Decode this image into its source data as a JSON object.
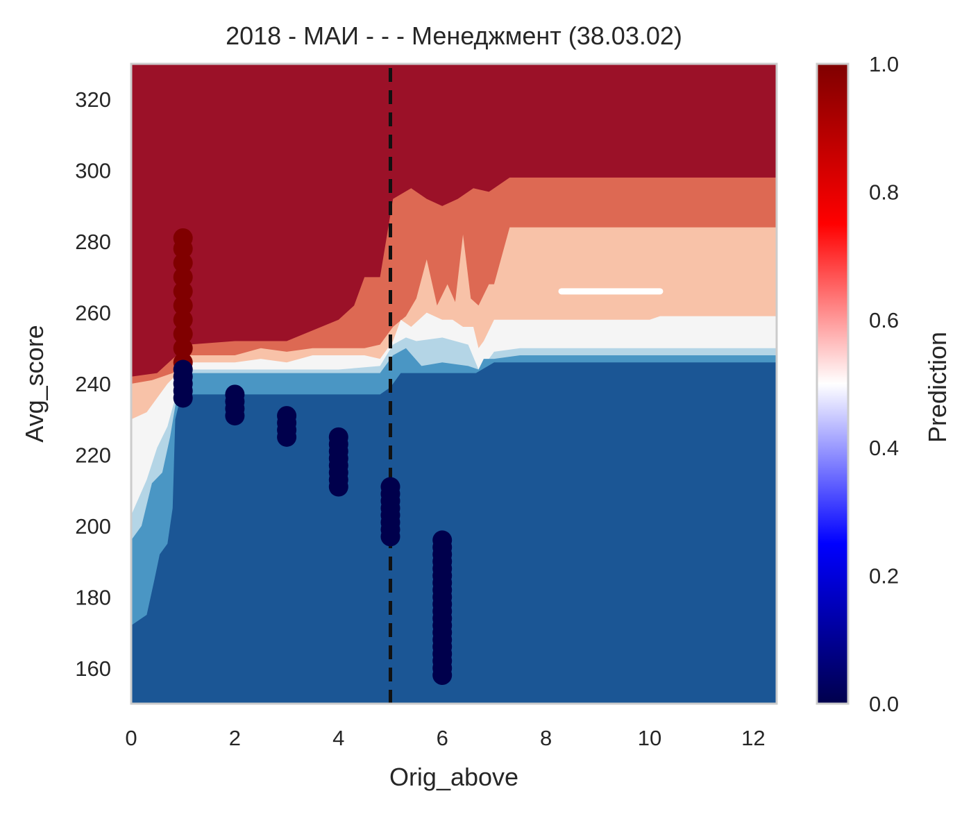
{
  "chart_data": {
    "type": "heatmap",
    "title": "2018 - МАИ - - - Менеджмент (38.03.02)",
    "xlabel": "Orig_above",
    "ylabel": "Avg_score",
    "xlim": [
      0,
      12.45
    ],
    "ylim": [
      150,
      330
    ],
    "xticks": [
      0,
      2,
      4,
      6,
      8,
      10,
      12
    ],
    "yticks": [
      160,
      180,
      200,
      220,
      240,
      260,
      280,
      300,
      320
    ],
    "threshold_x": 5,
    "grid": false,
    "colorbar": {
      "label": "Prediction",
      "range": [
        0,
        1
      ],
      "ticks": [
        "0.0",
        "0.2",
        "0.4",
        "0.6",
        "0.8",
        "1.0"
      ],
      "colormap": "seismic"
    },
    "contour_levels": [
      {
        "level": "0.0-0.15",
        "color": "#1b5695"
      },
      {
        "level": "0.15-0.3",
        "color": "#4a96c4"
      },
      {
        "level": "0.3-0.45",
        "color": "#b4d5e6"
      },
      {
        "level": "0.45-0.55",
        "color": "#f5f5f5"
      },
      {
        "level": "0.55-0.7",
        "color": "#f8c2a8"
      },
      {
        "level": "0.7-0.85",
        "color": "#dd6953"
      },
      {
        "level": "0.85-1.0",
        "color": "#9b1128"
      }
    ],
    "boundaries": [
      {
        "name": "b1",
        "points": [
          [
            0,
            172
          ],
          [
            0.3,
            175
          ],
          [
            0.45,
            185
          ],
          [
            0.55,
            192
          ],
          [
            0.7,
            195
          ],
          [
            0.8,
            205
          ],
          [
            0.85,
            230
          ],
          [
            0.95,
            236
          ],
          [
            1.1,
            237
          ],
          [
            2,
            237
          ],
          [
            3,
            237
          ],
          [
            4,
            237
          ],
          [
            4.8,
            237
          ],
          [
            5,
            239
          ],
          [
            5.2,
            243
          ],
          [
            6,
            243
          ],
          [
            6.6,
            243
          ],
          [
            6.65,
            243
          ],
          [
            7,
            246
          ],
          [
            8,
            246
          ],
          [
            10,
            246
          ],
          [
            12.45,
            246
          ]
        ]
      },
      {
        "name": "b2",
        "points": [
          [
            0,
            196
          ],
          [
            0.2,
            200
          ],
          [
            0.4,
            212
          ],
          [
            0.6,
            215
          ],
          [
            0.75,
            225
          ],
          [
            0.9,
            238
          ],
          [
            1.1,
            243
          ],
          [
            2,
            243
          ],
          [
            3,
            243
          ],
          [
            4,
            243
          ],
          [
            4.8,
            243
          ],
          [
            5.05,
            248
          ],
          [
            5.3,
            250
          ],
          [
            5.6,
            245
          ],
          [
            6,
            246
          ],
          [
            6.5,
            245
          ],
          [
            6.7,
            244
          ],
          [
            6.8,
            247
          ],
          [
            7,
            247
          ],
          [
            7.5,
            248
          ],
          [
            10,
            248
          ],
          [
            12.45,
            248
          ]
        ]
      },
      {
        "name": "b3",
        "points": [
          [
            0,
            203
          ],
          [
            0.3,
            213
          ],
          [
            0.5,
            222
          ],
          [
            0.7,
            228
          ],
          [
            0.85,
            236
          ],
          [
            1,
            241
          ],
          [
            1.1,
            244
          ],
          [
            2,
            244
          ],
          [
            3,
            244
          ],
          [
            4,
            244
          ],
          [
            4.8,
            245
          ],
          [
            5.05,
            251
          ],
          [
            5.3,
            253
          ],
          [
            5.5,
            252
          ],
          [
            6,
            253
          ],
          [
            6.5,
            251
          ],
          [
            6.7,
            244
          ],
          [
            6.9,
            247
          ],
          [
            7,
            249
          ],
          [
            7.5,
            250
          ],
          [
            10,
            250
          ],
          [
            12.45,
            250
          ]
        ]
      },
      {
        "name": "b4",
        "points": [
          [
            0,
            230
          ],
          [
            0.3,
            232
          ],
          [
            0.5,
            236
          ],
          [
            0.7,
            240
          ],
          [
            0.9,
            243
          ],
          [
            1.1,
            246
          ],
          [
            2,
            246
          ],
          [
            2.5,
            247
          ],
          [
            3,
            246
          ],
          [
            3.5,
            248
          ],
          [
            4,
            248
          ],
          [
            4.5,
            248
          ],
          [
            4.8,
            247
          ],
          [
            5.05,
            252
          ],
          [
            5.2,
            258
          ],
          [
            5.4,
            256
          ],
          [
            5.7,
            260
          ],
          [
            6,
            258
          ],
          [
            6.2,
            258
          ],
          [
            6.4,
            256
          ],
          [
            6.6,
            256
          ],
          [
            6.7,
            250
          ],
          [
            6.8,
            252
          ],
          [
            7,
            258
          ],
          [
            7.5,
            258
          ],
          [
            8,
            258
          ],
          [
            10,
            258
          ],
          [
            10.2,
            259
          ],
          [
            12.45,
            259
          ]
        ]
      },
      {
        "name": "b5",
        "points": [
          [
            0,
            240
          ],
          [
            0.4,
            241
          ],
          [
            0.8,
            243
          ],
          [
            1.1,
            248
          ],
          [
            2,
            248
          ],
          [
            2.5,
            250
          ],
          [
            3,
            249
          ],
          [
            3.5,
            250
          ],
          [
            4,
            250
          ],
          [
            4.5,
            250
          ],
          [
            4.8,
            251
          ],
          [
            5.05,
            256
          ],
          [
            5.3,
            259
          ],
          [
            5.5,
            264
          ],
          [
            5.7,
            275
          ],
          [
            5.9,
            262
          ],
          [
            6.1,
            268
          ],
          [
            6.25,
            263
          ],
          [
            6.4,
            282
          ],
          [
            6.55,
            264
          ],
          [
            6.7,
            262
          ],
          [
            6.9,
            268
          ],
          [
            7,
            268
          ],
          [
            7.3,
            284
          ],
          [
            8,
            284
          ],
          [
            9,
            284
          ],
          [
            10.2,
            284
          ],
          [
            12.45,
            284
          ]
        ]
      },
      {
        "name": "b6",
        "points": [
          [
            0,
            242
          ],
          [
            0.5,
            243
          ],
          [
            0.8,
            247
          ],
          [
            1.1,
            251
          ],
          [
            2,
            252
          ],
          [
            3,
            252
          ],
          [
            3.5,
            255
          ],
          [
            4,
            258
          ],
          [
            4.3,
            262
          ],
          [
            4.5,
            270
          ],
          [
            4.8,
            270
          ],
          [
            5.05,
            292
          ],
          [
            5.4,
            295
          ],
          [
            5.7,
            292
          ],
          [
            6,
            290
          ],
          [
            6.3,
            292
          ],
          [
            6.6,
            295
          ],
          [
            6.9,
            294
          ],
          [
            7.1,
            296
          ],
          [
            7.3,
            298
          ],
          [
            8,
            298
          ],
          [
            9,
            298
          ],
          [
            10.2,
            298
          ],
          [
            12.45,
            298
          ]
        ]
      }
    ],
    "gaps": [
      {
        "x0": 8.3,
        "x1": 10.2,
        "y": 266
      }
    ],
    "series": [
      {
        "name": "",
        "x": 1,
        "y": [
          246,
          250,
          254,
          258,
          262,
          266,
          270,
          274,
          278,
          281
        ],
        "prediction": 1
      },
      {
        "name": "",
        "x": 1,
        "y": [
          236,
          238,
          240,
          242,
          244
        ],
        "prediction": 0
      },
      {
        "name": "",
        "x": 2,
        "y": [
          231,
          233,
          235,
          237
        ],
        "prediction": 0
      },
      {
        "name": "",
        "x": 3,
        "y": [
          225,
          227,
          229,
          231
        ],
        "prediction": 0
      },
      {
        "name": "",
        "x": 4,
        "y": [
          211,
          213,
          215,
          217,
          219,
          221,
          223,
          225
        ],
        "prediction": 0
      },
      {
        "name": "",
        "x": 5,
        "y": [
          197,
          199,
          201,
          203,
          205,
          207,
          209,
          211
        ],
        "prediction": 0
      },
      {
        "name": "",
        "x": 6,
        "y": [
          158,
          160,
          162,
          164,
          166,
          168,
          170,
          172,
          174,
          176,
          178,
          180,
          182,
          184,
          186,
          188,
          190,
          192,
          194,
          196
        ],
        "prediction": 0
      }
    ]
  }
}
